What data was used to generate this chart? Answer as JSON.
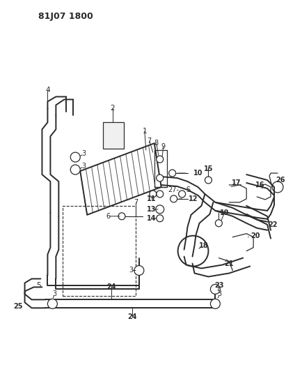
{
  "title": "81J07 1800",
  "bg_color": "#ffffff",
  "line_color": "#2a2a2a",
  "fig_width": 4.11,
  "fig_height": 5.33,
  "dpi": 100
}
